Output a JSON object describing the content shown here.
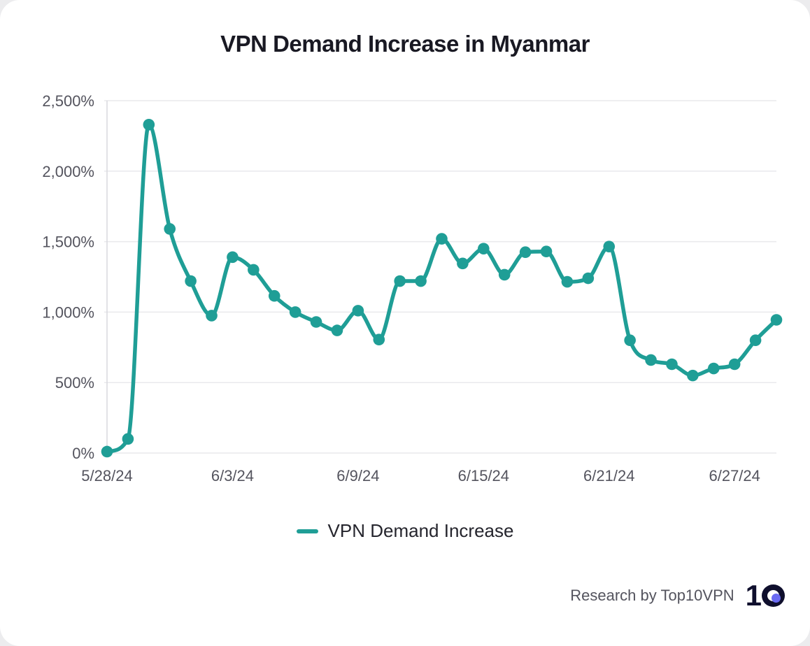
{
  "title": "VPN Demand Increase in Myanmar",
  "legend": {
    "label": "VPN Demand Increase"
  },
  "footer": {
    "credit": "Research by Top10VPN",
    "logo_one": "1",
    "logo_navy": "#0f0f2d",
    "logo_dot_color": "#6a6af2"
  },
  "colors": {
    "line": "#1F9E96",
    "title_text": "#191923",
    "axis_text": "#54545e",
    "gridline": "#e9e9ec",
    "axis_line": "#d9d9de",
    "background": "#ffffff"
  },
  "chart_data": {
    "type": "line",
    "series_name": "VPN Demand Increase",
    "title": "VPN Demand Increase in Myanmar",
    "xlabel": "",
    "ylabel": "",
    "ylim": [
      0,
      2500
    ],
    "grid": "horizontal",
    "legend_position": "bottom",
    "line_color": "#1F9E96",
    "marker": "circle",
    "x": [
      "5/28/24",
      "5/29/24",
      "5/30/24",
      "5/31/24",
      "6/1/24",
      "6/2/24",
      "6/3/24",
      "6/4/24",
      "6/5/24",
      "6/6/24",
      "6/7/24",
      "6/8/24",
      "6/9/24",
      "6/10/24",
      "6/11/24",
      "6/12/24",
      "6/13/24",
      "6/14/24",
      "6/15/24",
      "6/16/24",
      "6/17/24",
      "6/18/24",
      "6/19/24",
      "6/20/24",
      "6/21/24",
      "6/22/24",
      "6/23/24",
      "6/24/24",
      "6/25/24",
      "6/26/24",
      "6/27/24",
      "6/28/24",
      "6/29/24"
    ],
    "values": [
      10,
      100,
      2330,
      1590,
      1220,
      975,
      1390,
      1300,
      1115,
      1000,
      930,
      870,
      1010,
      805,
      1220,
      1220,
      1520,
      1345,
      1450,
      1265,
      1425,
      1430,
      1215,
      1240,
      1465,
      800,
      660,
      630,
      550,
      600,
      630,
      800,
      945
    ],
    "y_ticks": [
      0,
      500,
      1000,
      1500,
      2000,
      2500
    ],
    "y_tick_labels": [
      "0%",
      "500%",
      "1,000%",
      "1,500%",
      "2,000%",
      "2,500%"
    ],
    "x_tick_indices": [
      0,
      6,
      12,
      18,
      24,
      30
    ],
    "x_tick_labels": [
      "5/28/24",
      "6/3/24",
      "6/9/24",
      "6/15/24",
      "6/21/24",
      "6/27/24"
    ]
  }
}
